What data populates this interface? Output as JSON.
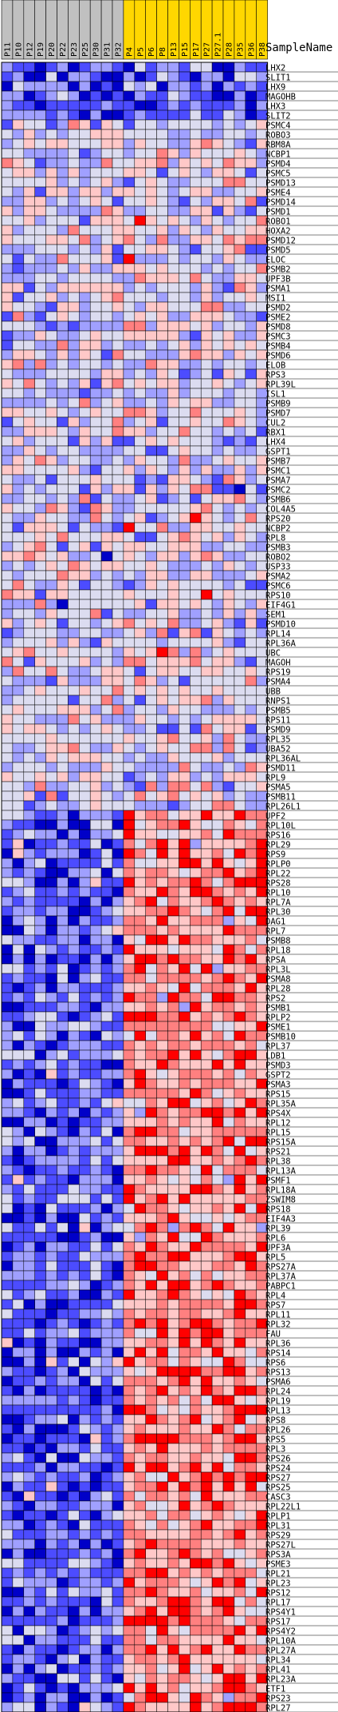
{
  "chart_data": {
    "type": "heatmap",
    "row_header": "SampleName",
    "columns": [
      {
        "name": "P11",
        "group": "gray"
      },
      {
        "name": "P10",
        "group": "gray"
      },
      {
        "name": "P12",
        "group": "gray"
      },
      {
        "name": "P19",
        "group": "gray"
      },
      {
        "name": "P20",
        "group": "gray"
      },
      {
        "name": "P22",
        "group": "gray"
      },
      {
        "name": "P23",
        "group": "gray"
      },
      {
        "name": "P25",
        "group": "gray"
      },
      {
        "name": "P30",
        "group": "gray"
      },
      {
        "name": "P31",
        "group": "gray"
      },
      {
        "name": "P32",
        "group": "gray"
      },
      {
        "name": "P4",
        "group": "gold"
      },
      {
        "name": "P5",
        "group": "gold"
      },
      {
        "name": "P6",
        "group": "gold"
      },
      {
        "name": "P8",
        "group": "gold"
      },
      {
        "name": "P13",
        "group": "gold"
      },
      {
        "name": "P15",
        "group": "gold"
      },
      {
        "name": "P17",
        "group": "gold"
      },
      {
        "name": "P27",
        "group": "gold"
      },
      {
        "name": "P27.1",
        "group": "gold"
      },
      {
        "name": "P28",
        "group": "gold"
      },
      {
        "name": "P35",
        "group": "gold"
      },
      {
        "name": "P36",
        "group": "gold"
      },
      {
        "name": "P38",
        "group": "gold"
      }
    ],
    "rows": [
      "LHX2",
      "SLIT1",
      "LHX9",
      "MAGOHB",
      "LHX3",
      "SLIT2",
      "PSMC4",
      "ROBO3",
      "RBM8A",
      "NCBP1",
      "PSMD4",
      "PSMC5",
      "PSMD13",
      "PSME4",
      "PSMD14",
      "PSMD1",
      "ROBO1",
      "HOXA2",
      "PSMD12",
      "PSMD5",
      "ELOC",
      "PSMB2",
      "UPF3B",
      "PSMA1",
      "MSI1",
      "PSMD2",
      "PSME2",
      "PSMD8",
      "PSMC3",
      "PSMB4",
      "PSMD6",
      "ELOB",
      "RPS3",
      "RPL39L",
      "ISL1",
      "PSMB9",
      "PSMD7",
      "CUL2",
      "RBX1",
      "LHX4",
      "GSPT1",
      "PSMB7",
      "PSMC1",
      "PSMA7",
      "PSMC2",
      "PSMB6",
      "COL4A5",
      "RPS20",
      "NCBP2",
      "RPL8",
      "PSMB3",
      "ROBO2",
      "USP33",
      "PSMA2",
      "PSMC6",
      "RPS10",
      "EIF4G1",
      "SEM1",
      "PSMD10",
      "RPL14",
      "RPL36A",
      "UBC",
      "MAGOH",
      "RPS19",
      "PSMA4",
      "UBB",
      "RNPS1",
      "PSMB5",
      "RPS11",
      "PSMD9",
      "RPL35",
      "UBA52",
      "RPL36AL",
      "PSMD11",
      "RPL9",
      "PSMA5",
      "PSMB11",
      "RPL26L1",
      "UPF2",
      "RPL10L",
      "RPS16",
      "RPL29",
      "RPS9",
      "RPLP0",
      "RPL22",
      "RPS28",
      "RPL10",
      "RPL7A",
      "RPL30",
      "DAG1",
      "RPL7",
      "PSMB8",
      "RPL18",
      "RPSA",
      "RPL3L",
      "PSMA8",
      "RPL28",
      "RPS2",
      "PSMB1",
      "RPLP2",
      "PSME1",
      "PSMB10",
      "RPL37",
      "LDB1",
      "PSMD3",
      "GSPT2",
      "PSMA3",
      "RPS15",
      "RPL35A",
      "RPS4X",
      "RPL12",
      "RPL15",
      "RPS15A",
      "RPS21",
      "RPL38",
      "RPL13A",
      "PSMF1",
      "RPL18A",
      "ZSWIM8",
      "RPS18",
      "EIF4A3",
      "RPL39",
      "RPL6",
      "UPF3A",
      "RPL5",
      "RPS27A",
      "RPL37A",
      "PABPC1",
      "RPL4",
      "RPS7",
      "RPL11",
      "RPL32",
      "FAU",
      "RPL36",
      "RPS14",
      "RPS6",
      "RPS13",
      "PSMA6",
      "RPL24",
      "RPL19",
      "RPL13",
      "RPS8",
      "RPL26",
      "RPS5",
      "RPL3",
      "RPS26",
      "RPS24",
      "RPS27",
      "RPS25",
      "CASC3",
      "RPL22L1",
      "RPLP1",
      "RPL31",
      "RPS29",
      "RPS27L",
      "RPS3A",
      "PSME3",
      "RPL21",
      "RPL23",
      "RPS12",
      "RPL17",
      "RPS4Y1",
      "RPS17",
      "RPS4Y2",
      "RPL10A",
      "RPL27A",
      "RPL34",
      "RPL41",
      "RPL23A",
      "ETF1",
      "RPS23",
      "RPL27"
    ],
    "colors": {
      "strong_high": "#ff0000",
      "high": "#ff8080",
      "mild_high": "#ffc8c8",
      "neutral": "#dcdcf0",
      "mild_low": "#a0a0ff",
      "low": "#4c4cff",
      "strong_low": "#0000c8",
      "group_gray": "#c0c0c0",
      "group_gold": "#ffd700"
    }
  }
}
